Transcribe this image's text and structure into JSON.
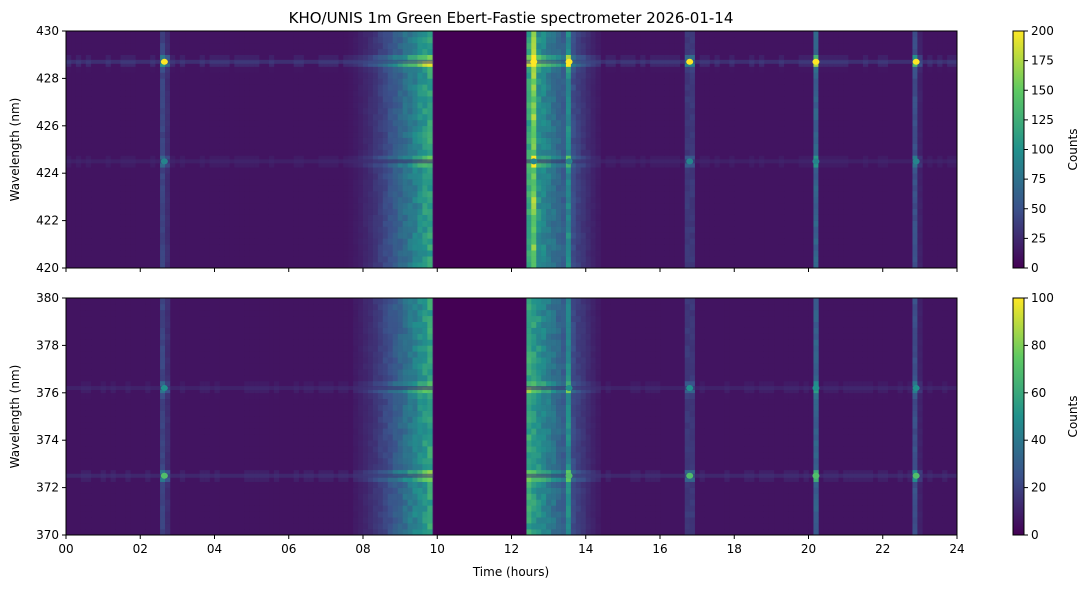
{
  "figure": {
    "title": "KHO/UNIS 1m Green Ebert-Fastie spectrometer 2026-01-14",
    "xlabel": "Time (hours)"
  },
  "chart_data": [
    {
      "type": "heatmap",
      "ylabel": "Wavelength (nm)",
      "colorbar_label": "Counts",
      "colormap": "viridis",
      "x_range": [
        0,
        24
      ],
      "x_ticks": [
        "00",
        "02",
        "04",
        "06",
        "08",
        "10",
        "12",
        "14",
        "16",
        "18",
        "20",
        "22",
        "24"
      ],
      "x_tick_labels_visible": false,
      "y_range": [
        420,
        430
      ],
      "y_ticks": [
        "420",
        "422",
        "424",
        "426",
        "428",
        "430"
      ],
      "colorbar_range": [
        0,
        200
      ],
      "colorbar_ticks": [
        "0",
        "25",
        "50",
        "75",
        "100",
        "125",
        "150",
        "175",
        "200"
      ],
      "background_counts": 12,
      "daylight_gap_hours": [
        9.9,
        12.4
      ],
      "emission_lines": [
        {
          "wavelength_nm": 428.7,
          "peak_counts": 200
        },
        {
          "wavelength_nm": 424.5,
          "peak_counts": 90
        }
      ],
      "bright_events_hours": [
        2.65,
        12.6,
        13.55,
        16.8,
        20.2,
        22.9
      ]
    },
    {
      "type": "heatmap",
      "ylabel": "Wavelength (nm)",
      "colorbar_label": "Counts",
      "colormap": "viridis",
      "x_range": [
        0,
        24
      ],
      "x_ticks": [
        "00",
        "02",
        "04",
        "06",
        "08",
        "10",
        "12",
        "14",
        "16",
        "18",
        "20",
        "22",
        "24"
      ],
      "x_tick_labels_visible": true,
      "y_range": [
        370,
        380
      ],
      "y_ticks": [
        "370",
        "372",
        "374",
        "376",
        "378",
        "380"
      ],
      "colorbar_range": [
        0,
        100
      ],
      "colorbar_ticks": [
        "0",
        "20",
        "40",
        "60",
        "80",
        "100"
      ],
      "background_counts": 6,
      "daylight_gap_hours": [
        9.9,
        12.4
      ],
      "emission_lines": [
        {
          "wavelength_nm": 372.5,
          "peak_counts": 70
        },
        {
          "wavelength_nm": 376.2,
          "peak_counts": 50
        }
      ],
      "bright_events_hours": [
        2.65,
        13.55,
        16.8,
        20.2,
        22.9
      ]
    }
  ],
  "colors": {
    "viridis_dark": "#440154",
    "viridis_blue": "#3b528b",
    "viridis_teal": "#21918c",
    "viridis_green": "#5ec962",
    "viridis_yellow": "#fde725"
  }
}
